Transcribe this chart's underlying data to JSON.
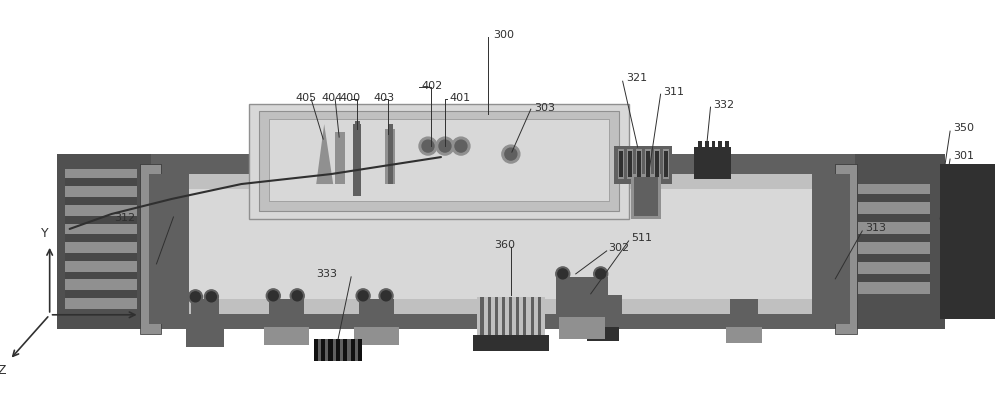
{
  "bg_color": "#ffffff",
  "colors": {
    "dark_gray": "#606060",
    "med_gray": "#909090",
    "light_gray": "#c0c0c0",
    "very_light_gray": "#d8d8d8",
    "dark": "#303030",
    "black": "#101010",
    "stripe_dark": "#484848",
    "outer_dark": "#505050"
  },
  "figsize": [
    10.0,
    4.06
  ],
  "dpi": 100
}
